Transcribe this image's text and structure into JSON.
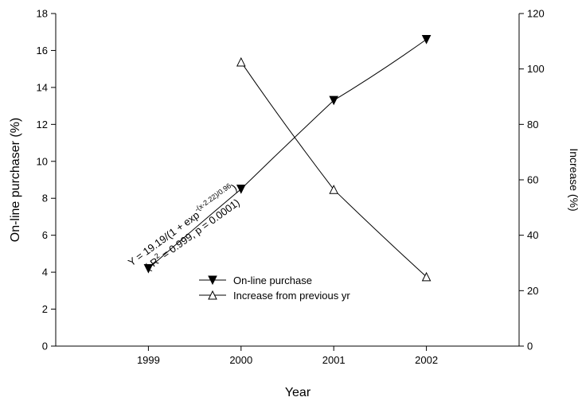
{
  "chart_data": {
    "type": "line",
    "x": [
      1999,
      2000,
      2001,
      2002
    ],
    "xlabel": "Year",
    "xlim": [
      1998,
      2003
    ],
    "ylabel_left": "On-line purchaser (%)",
    "ylim_left": [
      0,
      18
    ],
    "yticks_left": [
      0,
      2,
      4,
      6,
      8,
      10,
      12,
      14,
      16,
      18
    ],
    "ylabel_right": "Increase (%)",
    "ylim_right": [
      0,
      120
    ],
    "yticks_right": [
      0,
      20,
      40,
      60,
      80,
      100,
      120
    ],
    "grid": false,
    "legend_position": "bottom-center",
    "series": [
      {
        "name": "On-line purchase",
        "axis": "left",
        "marker": "filled-down-triangle",
        "x": [
          1999,
          2000,
          2001,
          2002
        ],
        "values": [
          4.2,
          8.5,
          13.3,
          16.6
        ]
      },
      {
        "name": "Increase from previous yr",
        "axis": "right",
        "marker": "open-up-triangle",
        "x": [
          2000,
          2001,
          2002
        ],
        "values": [
          102.5,
          56.5,
          25.0
        ]
      }
    ],
    "annotation": {
      "line1": "Y = 19.19/(1 + exp",
      "line1_sup": "-(x-2.22)/0.96",
      "line1_end": ")",
      "line2_a": "( R",
      "line2_sup": "2",
      "line2_b": " = 0.999, p = 0.0001)"
    }
  }
}
